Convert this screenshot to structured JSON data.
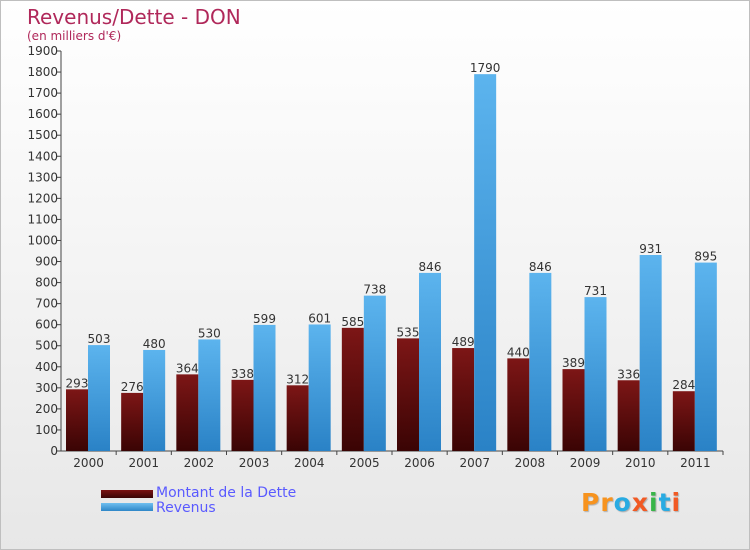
{
  "chart_data": {
    "type": "bar",
    "title": "Revenus/Dette - DON",
    "subtitle": "(en milliers d'€)",
    "categories": [
      "2000",
      "2001",
      "2002",
      "2003",
      "2004",
      "2005",
      "2006",
      "2007",
      "2008",
      "2009",
      "2010",
      "2011"
    ],
    "series": [
      {
        "name": "Montant de la Dette",
        "values": [
          293,
          276,
          364,
          338,
          312,
          585,
          535,
          489,
          440,
          389,
          336,
          284
        ],
        "color": "#6b0d0d"
      },
      {
        "name": "Revenus",
        "values": [
          503,
          480,
          530,
          599,
          601,
          738,
          846,
          1790,
          846,
          731,
          931,
          895
        ],
        "color": "#4aa3e0"
      }
    ],
    "ylim": [
      0,
      1900
    ],
    "y_ticks": [
      "0",
      "100",
      "200",
      "300",
      "400",
      "500",
      "600",
      "700",
      "800",
      "900",
      "1000",
      "1100",
      "1200",
      "1300",
      "1400",
      "1500",
      "1600",
      "1700",
      "1800",
      "1900"
    ],
    "grid": false,
    "legend_position": "bottom-left"
  },
  "logo_text": "Proxiti"
}
